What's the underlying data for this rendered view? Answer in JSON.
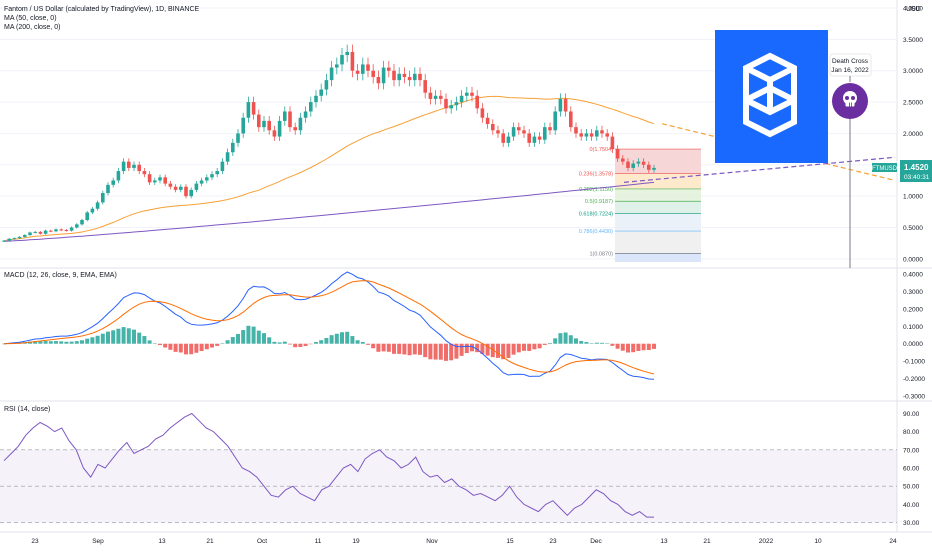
{
  "header": {
    "title": "Fantom / US Dollar (calculated by TradingView), 1D, BINANCE",
    "ma50": "MA (50, close, 0)",
    "ma200": "MA (200, close, 0)",
    "currency": "USD",
    "macd_label": "MACD (12, 26, close, 9, EMA, EMA)",
    "rsi_label": "RSI (14, close)"
  },
  "price_tag": {
    "symbol": "FTMUSD",
    "price": "1.4520",
    "countdown": "03:40:31"
  },
  "death_cross": {
    "title": "Death Cross",
    "date": "Jan 16, 2022"
  },
  "fib_labels": [
    "0(1.7504)",
    "0.236(1.3578)",
    "0.382(1.1150)",
    "0.5(0.9187)",
    "0.618(0.7224)",
    "0.786(0.4430)",
    "1(0.0870)"
  ],
  "colors": {
    "up": "#26a69a",
    "down": "#ef5350",
    "ma50": "#f7a034",
    "ma200": "#7e57c2",
    "macd": "#2962ff",
    "signal": "#ff6d00",
    "rsi": "#7e57c2",
    "logo_bg": "#1969ff"
  },
  "chart_data": {
    "type": "candlestick",
    "price_axis": {
      "ticks": [
        "4.0000",
        "3.5000",
        "3.0000",
        "2.5000",
        "2.0000",
        "1.5000",
        "1.0000",
        "0.5000",
        "0.0000"
      ],
      "range": [
        -0.05,
        4.0
      ]
    },
    "macd_axis": {
      "ticks": [
        "0.4000",
        "0.3000",
        "0.2000",
        "0.1000",
        "0.0000",
        "-0.1000",
        "-0.2000",
        "-0.3000"
      ],
      "range": [
        -0.3,
        0.4
      ]
    },
    "rsi_axis": {
      "ticks": [
        "90.00",
        "80.00",
        "70.00",
        "60.00",
        "50.00",
        "40.00",
        "30.00"
      ],
      "range": [
        27,
        93
      ],
      "bands": [
        30,
        50,
        70
      ]
    },
    "x_ticks": [
      "23",
      "Sep",
      "13",
      "21",
      "Oct",
      "11",
      "19",
      "Nov",
      "15",
      "23",
      "Dec",
      "13",
      "21",
      "2022",
      "10",
      "24"
    ],
    "closes": [
      0.29,
      0.32,
      0.33,
      0.35,
      0.38,
      0.42,
      0.43,
      0.4,
      0.45,
      0.44,
      0.47,
      0.46,
      0.45,
      0.5,
      0.55,
      0.62,
      0.74,
      0.8,
      0.9,
      1.05,
      1.18,
      1.25,
      1.4,
      1.55,
      1.45,
      1.5,
      1.4,
      1.35,
      1.22,
      1.25,
      1.3,
      1.2,
      1.15,
      1.1,
      1.15,
      1.0,
      1.1,
      1.2,
      1.25,
      1.3,
      1.35,
      1.4,
      1.55,
      1.7,
      1.85,
      2.0,
      2.25,
      2.5,
      2.3,
      2.1,
      2.2,
      2.05,
      1.95,
      2.2,
      2.35,
      2.1,
      2.05,
      2.25,
      2.35,
      2.5,
      2.6,
      2.7,
      2.85,
      3.05,
      3.1,
      3.25,
      3.3,
      3.0,
      2.95,
      3.1,
      3.0,
      2.9,
      2.8,
      3.05,
      3.0,
      2.85,
      2.95,
      2.9,
      2.85,
      2.95,
      2.85,
      2.65,
      2.55,
      2.6,
      2.55,
      2.4,
      2.45,
      2.5,
      2.6,
      2.65,
      2.6,
      2.4,
      2.25,
      2.15,
      2.05,
      2.0,
      1.85,
      1.95,
      2.1,
      2.05,
      2.0,
      1.85,
      1.95,
      1.9,
      2.1,
      2.05,
      2.35,
      2.55,
      2.35,
      2.1,
      2.0,
      1.95,
      2.0,
      1.95,
      2.05,
      2.0,
      1.95,
      1.75,
      1.6,
      1.55,
      1.45,
      1.52,
      1.55,
      1.5,
      1.42,
      1.45
    ],
    "rsi": [
      64,
      68,
      72,
      78,
      82,
      85,
      83,
      80,
      82,
      75,
      70,
      60,
      55,
      62,
      60,
      65,
      70,
      74,
      68,
      70,
      72,
      76,
      78,
      82,
      85,
      88,
      90,
      86,
      82,
      80,
      76,
      72,
      66,
      60,
      58,
      55,
      50,
      45,
      44,
      48,
      50,
      46,
      44,
      42,
      48,
      50,
      55,
      60,
      62,
      58,
      65,
      68,
      70,
      66,
      64,
      60,
      62,
      66,
      58,
      55,
      56,
      52,
      54,
      50,
      48,
      45,
      46,
      44,
      42,
      45,
      50,
      44,
      40,
      38,
      36,
      40,
      42,
      38,
      34,
      38,
      40,
      44,
      48,
      46,
      42,
      40,
      36,
      34,
      36,
      33,
      33
    ]
  }
}
